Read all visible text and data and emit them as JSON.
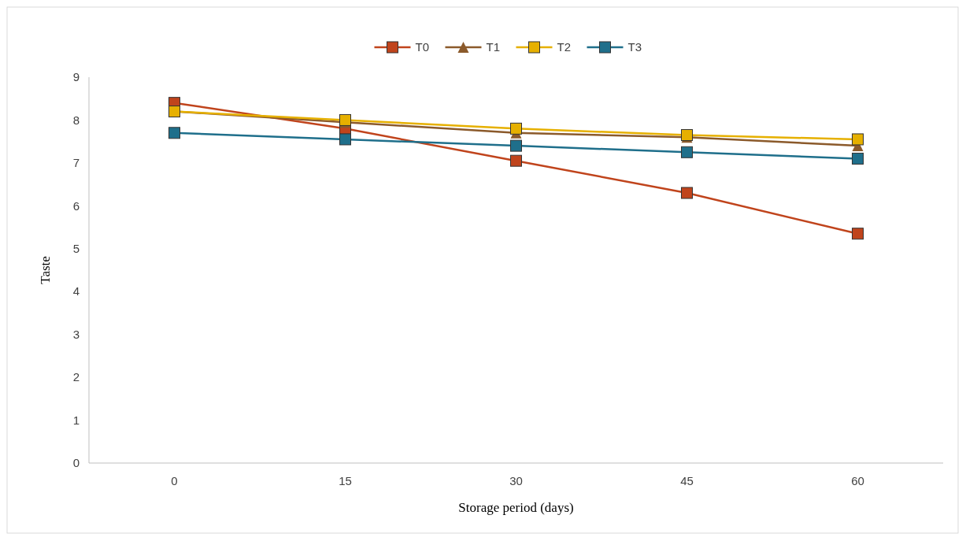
{
  "chart_data": {
    "type": "line",
    "xlabel": "Storage period (days)",
    "ylabel": "Taste",
    "categories": [
      "0",
      "15",
      "30",
      "45",
      "60"
    ],
    "ylim": [
      0,
      9
    ],
    "yticks": [
      0,
      1,
      2,
      3,
      4,
      5,
      6,
      7,
      8,
      9
    ],
    "grid": false,
    "legend": "top",
    "line_style": "solid",
    "series": [
      {
        "name": "T0",
        "color": "#c0441c",
        "marker": "square",
        "values": [
          8.4,
          7.8,
          7.05,
          6.3,
          5.35
        ]
      },
      {
        "name": "T1",
        "color": "#8b5a2b",
        "marker": "triangle",
        "values": [
          8.2,
          7.95,
          7.7,
          7.6,
          7.4
        ]
      },
      {
        "name": "T2",
        "color": "#e6b000",
        "marker": "square",
        "values": [
          8.2,
          8.0,
          7.8,
          7.65,
          7.55
        ]
      },
      {
        "name": "T3",
        "color": "#1f6f8b",
        "marker": "square",
        "values": [
          7.7,
          7.55,
          7.4,
          7.25,
          7.1
        ]
      }
    ]
  }
}
